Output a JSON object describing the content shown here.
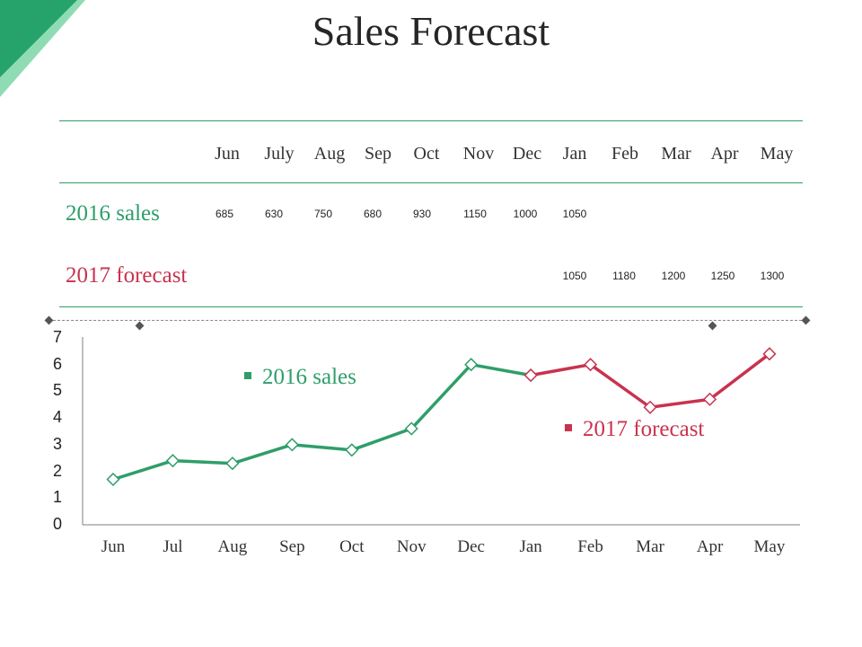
{
  "title": "Sales Forecast",
  "colors": {
    "sales": "#2e9e6a",
    "forecast": "#c8334f",
    "accent_dark": "#25a36b",
    "accent_light": "#8fdcb4"
  },
  "table": {
    "months": [
      "Jun",
      "July",
      "Aug",
      "Sep",
      "Oct",
      "Nov",
      "Dec",
      "Jan",
      "Feb",
      "Mar",
      "Apr",
      "May"
    ],
    "rows": [
      {
        "label": "2016 sales",
        "values": [
          "685",
          "630",
          "750",
          "680",
          "930",
          "1150",
          "1000",
          "1050",
          "",
          "",
          "",
          ""
        ]
      },
      {
        "label": "2017 forecast",
        "values": [
          "",
          "",
          "",
          "",
          "",
          "",
          "",
          "1050",
          "1180",
          "1200",
          "1250",
          "1300"
        ]
      }
    ]
  },
  "chart_data": {
    "type": "line",
    "categories": [
      "Jun",
      "Jul",
      "Aug",
      "Sep",
      "Oct",
      "Nov",
      "Dec",
      "Jan",
      "Feb",
      "Mar",
      "Apr",
      "May"
    ],
    "y_ticks": [
      "0",
      "1",
      "2",
      "3",
      "4",
      "5",
      "6",
      "7"
    ],
    "ylim": [
      0,
      7
    ],
    "series": [
      {
        "name": "2016 sales",
        "values": [
          1.7,
          2.4,
          2.3,
          3.0,
          2.8,
          3.6,
          6.0,
          5.6,
          null,
          null,
          null,
          null
        ]
      },
      {
        "name": "2017 forecast",
        "values": [
          null,
          null,
          null,
          null,
          null,
          null,
          null,
          5.6,
          6.0,
          4.4,
          4.7,
          6.4
        ]
      }
    ],
    "grid": false
  }
}
